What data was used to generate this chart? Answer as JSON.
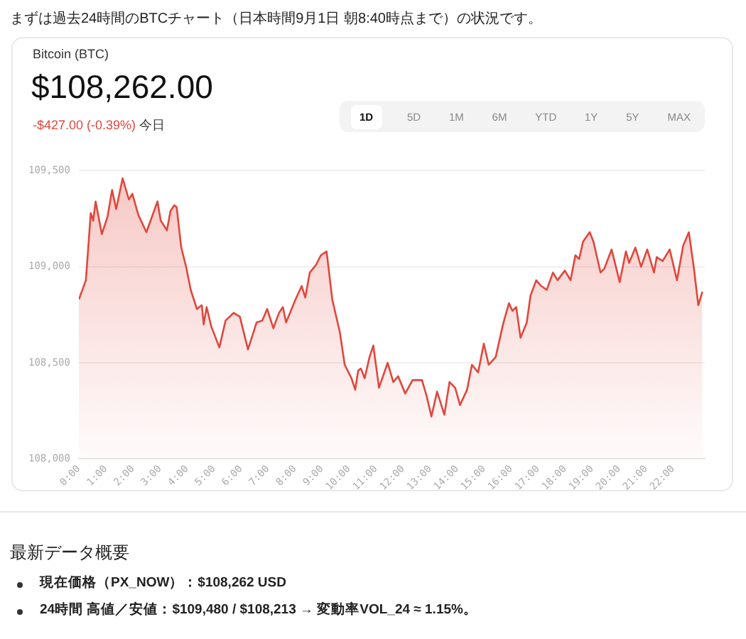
{
  "chart_data": {
    "type": "area",
    "title": "まずは過去24時間のBTCチャート（日本時間9月1日 朝8:40時点まで）の状況です。",
    "subtitle": "Bitcoin (BTC)",
    "annotations": [
      "$108,262.00",
      "-$427.00 (-0.39%)",
      "今日",
      "1D",
      "5D",
      "1M",
      "6M",
      "YTD",
      "1Y",
      "5Y",
      "MAX",
      "最新データ概要",
      "現在価格（PX_NOW）：$108,262 USD",
      "24時間 高値／安値：$109,480 / $108,213 → 変動率VOL_24 ≈ 1.15%。"
    ],
    "x": [
      0,
      0.26,
      0.44,
      0.53,
      0.62,
      0.85,
      1.06,
      1.23,
      1.38,
      1.62,
      1.85,
      1.98,
      2.2,
      2.5,
      2.91,
      3.03,
      3.26,
      3.39,
      3.53,
      3.62,
      3.79,
      3.97,
      4.14,
      4.37,
      4.55,
      4.62,
      4.73,
      4.9,
      5.2,
      5.43,
      5.73,
      5.96,
      6.26,
      6.58,
      6.79,
      6.97,
      7.2,
      7.41,
      7.55,
      7.67,
      8.02,
      8.25,
      8.38,
      8.55,
      8.78,
      8.96,
      9.17,
      9.38,
      9.66,
      9.84,
      10.09,
      10.23,
      10.34,
      10.44,
      10.58,
      10.76,
      10.9,
      11.11,
      11.43,
      11.64,
      11.82,
      12.08,
      12.35,
      12.7,
      12.87,
      13.05,
      13.26,
      13.53,
      13.72,
      13.93,
      14.11,
      14.37,
      14.55,
      14.78,
      14.99,
      15.17,
      15.43,
      15.7,
      15.92,
      16.05,
      16.19,
      16.35,
      16.58,
      16.72,
      16.93,
      17.11,
      17.32,
      17.55,
      17.72,
      17.99,
      18.2,
      18.38,
      18.52,
      18.66,
      18.91,
      19.05,
      19.31,
      19.45,
      19.72,
      20.02,
      20.25,
      20.37,
      20.6,
      20.81,
      21.04,
      21.29,
      21.39,
      21.61,
      21.87,
      22.14,
      22.37,
      22.58,
      22.76,
      22.93,
      23.08
    ],
    "series": [
      {
        "color": "#e0473c",
        "values": [
          108830,
          108930,
          109280,
          109240,
          109340,
          109170,
          109260,
          109400,
          109300,
          109460,
          109350,
          109380,
          109270,
          109180,
          109340,
          109240,
          109190,
          109290,
          109320,
          109310,
          109100,
          109000,
          108880,
          108780,
          108800,
          108700,
          108790,
          108690,
          108580,
          108720,
          108760,
          108740,
          108570,
          108710,
          108720,
          108780,
          108680,
          108760,
          108790,
          108710,
          108830,
          108900,
          108840,
          108970,
          109010,
          109060,
          109080,
          108830,
          108660,
          108490,
          108420,
          108360,
          108460,
          108470,
          108420,
          108530,
          108590,
          108370,
          108500,
          108400,
          108430,
          108340,
          108410,
          108410,
          108330,
          108220,
          108350,
          108230,
          108400,
          108370,
          108280,
          108360,
          108490,
          108450,
          108600,
          108490,
          108530,
          108700,
          108810,
          108770,
          108790,
          108630,
          108710,
          108850,
          108930,
          108900,
          108880,
          108970,
          108930,
          108980,
          108930,
          109060,
          109040,
          109130,
          109180,
          109130,
          108970,
          108990,
          109090,
          108920,
          109080,
          109020,
          109100,
          109000,
          109090,
          108970,
          109050,
          109030,
          109090,
          108930,
          109110,
          109180,
          109000,
          108800,
          108870
        ]
      }
    ],
    "xlim": [
      0,
      23.17
    ],
    "xticks": [
      {
        "value": 0,
        "label": "0:00"
      },
      {
        "value": 1,
        "label": "1:00"
      },
      {
        "value": 2,
        "label": "2:00"
      },
      {
        "value": 3,
        "label": "3:00"
      },
      {
        "value": 4,
        "label": "4:00"
      },
      {
        "value": 5,
        "label": "5:00"
      },
      {
        "value": 6,
        "label": "6:00"
      },
      {
        "value": 7,
        "label": "7:00"
      },
      {
        "value": 8,
        "label": "8:00"
      },
      {
        "value": 9,
        "label": "9:00"
      },
      {
        "value": 10,
        "label": "10:00"
      },
      {
        "value": 11,
        "label": "11:00"
      },
      {
        "value": 12,
        "label": "12:00"
      },
      {
        "value": 13,
        "label": "13:00"
      },
      {
        "value": 14,
        "label": "14:00"
      },
      {
        "value": 15,
        "label": "15:00"
      },
      {
        "value": 16,
        "label": "16:00"
      },
      {
        "value": 17,
        "label": "17:00"
      },
      {
        "value": 18,
        "label": "18:00"
      },
      {
        "value": 19,
        "label": "19:00"
      },
      {
        "value": 20,
        "label": "20:00"
      },
      {
        "value": 21,
        "label": "21:00"
      },
      {
        "value": 22,
        "label": "22:00"
      }
    ],
    "ylim": [
      108000,
      109500
    ],
    "yticks": [
      {
        "value": 108000,
        "label": "108,000"
      },
      {
        "value": 108500,
        "label": "108,500"
      },
      {
        "value": 109000,
        "label": "109,000"
      },
      {
        "value": 109500,
        "label": "109,500"
      }
    ],
    "grid": "y",
    "legend": false,
    "marker": "none",
    "line_style": "solid"
  }
}
